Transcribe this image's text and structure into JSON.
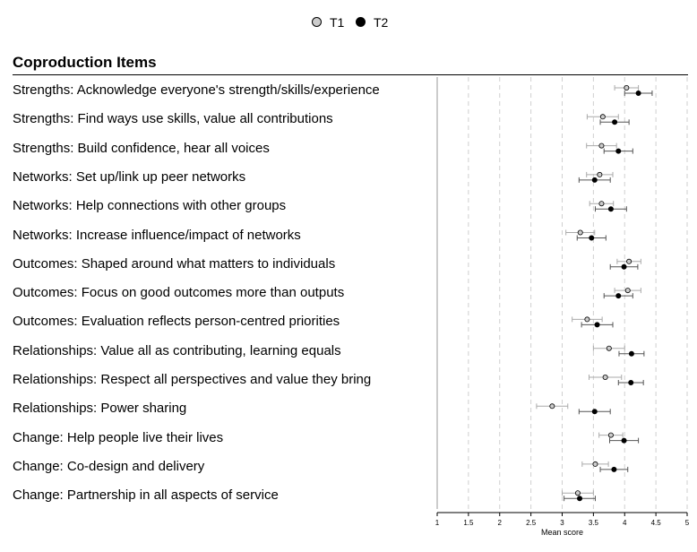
{
  "legend": {
    "items": [
      {
        "label": "T1",
        "color": "#cccccc"
      },
      {
        "label": "T2",
        "color": "#000000"
      }
    ]
  },
  "section_title": "Coproduction Items",
  "chart_data": {
    "type": "scatter",
    "title": "",
    "xlabel": "Mean score",
    "ylabel": "",
    "xlim": [
      1,
      5
    ],
    "xticks": [
      "1",
      "1.5",
      "2",
      "2.5",
      "3",
      "3.5",
      "4",
      "4.5",
      "5"
    ],
    "grid": "vertical dashed",
    "legend_position": "top-center",
    "error_bars": true,
    "categories": [
      "Strengths: Acknowledge everyone's strength/skills/experience",
      "Strengths: Find ways use skills, value all contributions",
      "Strengths: Build confidence, hear all voices",
      "Networks: Set up/link up peer networks",
      "Networks: Help connections with other groups",
      "Networks: Increase influence/impact of networks",
      "Outcomes: Shaped around what matters to individuals",
      "Outcomes: Focus on good outcomes more than outputs",
      "Outcomes: Evaluation reflects person-centred priorities",
      "Relationships: Value all as contributing, learning equals",
      "Relationships: Respect all perspectives and value they bring",
      "Relationships: Power sharing",
      "Change: Help people live their lives",
      "Change: Co-design and delivery",
      "Change: Partnership in all aspects of service"
    ],
    "series": [
      {
        "name": "T1",
        "color": "#cccccc",
        "values": [
          4.03,
          3.65,
          3.63,
          3.6,
          3.63,
          3.29,
          4.07,
          4.05,
          3.4,
          3.75,
          3.69,
          2.84,
          3.78,
          3.53,
          3.25
        ],
        "ci_low": [
          3.84,
          3.4,
          3.39,
          3.39,
          3.44,
          3.06,
          3.88,
          3.84,
          3.16,
          3.5,
          3.43,
          2.59,
          3.59,
          3.32,
          3.0
        ],
        "ci_high": [
          4.22,
          3.9,
          3.87,
          3.81,
          3.82,
          3.52,
          4.26,
          4.26,
          3.64,
          4.0,
          3.95,
          3.09,
          3.97,
          3.74,
          3.5
        ]
      },
      {
        "name": "T2",
        "color": "#000000",
        "values": [
          4.22,
          3.84,
          3.9,
          3.52,
          3.78,
          3.47,
          3.99,
          3.9,
          3.56,
          4.11,
          4.1,
          3.52,
          3.99,
          3.83,
          3.28
        ],
        "ci_low": [
          4.0,
          3.61,
          3.67,
          3.27,
          3.53,
          3.24,
          3.77,
          3.67,
          3.31,
          3.91,
          3.9,
          3.27,
          3.76,
          3.61,
          3.03
        ],
        "ci_high": [
          4.44,
          4.07,
          4.13,
          3.77,
          4.03,
          3.7,
          4.21,
          4.13,
          3.81,
          4.31,
          4.3,
          3.77,
          4.22,
          4.05,
          3.53
        ]
      }
    ]
  }
}
